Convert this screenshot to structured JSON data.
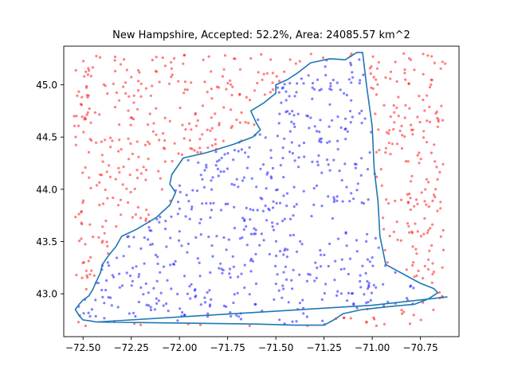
{
  "chart_data": {
    "type": "scatter",
    "title": "New Hampshire, Accepted: 52.2%, Area: 24085.57 km^2",
    "xlabel": "",
    "ylabel": "",
    "xlim": [
      -72.6,
      -70.55
    ],
    "ylim": [
      42.59,
      45.37
    ],
    "xticks": [
      -72.5,
      -72.25,
      -72.0,
      -71.75,
      -71.5,
      -71.25,
      -71.0,
      -70.75
    ],
    "xtick_labels": [
      "−72.50",
      "−72.25",
      "−72.00",
      "−71.75",
      "−71.50",
      "−71.25",
      "−71.00",
      "−70.75"
    ],
    "yticks": [
      43.0,
      43.5,
      44.0,
      44.5,
      45.0
    ],
    "ytick_labels": [
      "43.0",
      "43.5",
      "44.0",
      "44.5",
      "45.0"
    ],
    "grid": false,
    "sample_region": {
      "x": [
        -72.55,
        -70.62
      ],
      "y": [
        42.69,
        45.3
      ]
    },
    "accepted_fraction": 0.522,
    "n_points": 1100,
    "accepted_color": "#0000ff",
    "rejected_color": "#ff0000",
    "boundary_color": "#1f77b4",
    "boundary": [
      [
        -72.43,
        42.73
      ],
      [
        -72.46,
        42.74
      ],
      [
        -72.5,
        42.75
      ],
      [
        -72.52,
        42.79
      ],
      [
        -72.54,
        42.85
      ],
      [
        -72.52,
        42.9
      ],
      [
        -72.5,
        42.94
      ],
      [
        -72.47,
        42.98
      ],
      [
        -72.45,
        43.04
      ],
      [
        -72.43,
        43.12
      ],
      [
        -72.41,
        43.2
      ],
      [
        -72.4,
        43.28
      ],
      [
        -72.37,
        43.36
      ],
      [
        -72.33,
        43.45
      ],
      [
        -72.3,
        43.55
      ],
      [
        -72.22,
        43.62
      ],
      [
        -72.12,
        43.73
      ],
      [
        -72.05,
        43.85
      ],
      [
        -72.02,
        43.97
      ],
      [
        -72.05,
        44.05
      ],
      [
        -72.04,
        44.14
      ],
      [
        -71.98,
        44.3
      ],
      [
        -71.86,
        44.35
      ],
      [
        -71.72,
        44.43
      ],
      [
        -71.62,
        44.5
      ],
      [
        -71.58,
        44.57
      ],
      [
        -71.6,
        44.63
      ],
      [
        -71.63,
        44.75
      ],
      [
        -71.56,
        44.83
      ],
      [
        -71.5,
        44.92
      ],
      [
        -71.5,
        45.0
      ],
      [
        -71.44,
        45.05
      ],
      [
        -71.39,
        45.11
      ],
      [
        -71.32,
        45.21
      ],
      [
        -71.22,
        45.25
      ],
      [
        -71.14,
        45.24
      ],
      [
        -71.08,
        45.31
      ],
      [
        -71.05,
        45.31
      ],
      [
        -71.03,
        45.0
      ],
      [
        -71.0,
        44.6
      ],
      [
        -70.99,
        44.2
      ],
      [
        -70.97,
        43.88
      ],
      [
        -70.96,
        43.55
      ],
      [
        -70.93,
        43.28
      ],
      [
        -70.8,
        43.15
      ],
      [
        -70.75,
        43.1
      ],
      [
        -70.68,
        43.05
      ],
      [
        -70.66,
        43.01
      ],
      [
        -70.71,
        42.95
      ],
      [
        -70.78,
        42.9
      ],
      [
        -70.9,
        42.88
      ],
      [
        -71.05,
        42.85
      ],
      [
        -71.15,
        42.81
      ],
      [
        -71.2,
        42.75
      ],
      [
        -71.25,
        42.7
      ],
      [
        -71.4,
        42.7
      ],
      [
        -71.6,
        42.71
      ],
      [
        -72.0,
        42.72
      ],
      [
        -72.43,
        42.73
      ],
      [
        -71.0,
        42.89
      ],
      [
        -70.61,
        42.97
      ]
    ]
  }
}
